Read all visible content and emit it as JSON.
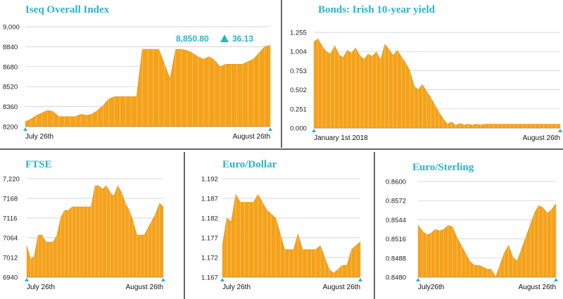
{
  "colors": {
    "fill": "#f5a21b",
    "stroke": "#e08e08",
    "title": "#2bb3c9",
    "grid": "#c9c9c9",
    "divider": "#333333"
  },
  "chart_data": [
    {
      "type": "area",
      "title": "Iseq Overall Index",
      "x_labels": [
        "July 26th",
        "August 26th"
      ],
      "ylim": [
        8200,
        9000
      ],
      "y_ticks": [
        "9,000",
        "8840",
        "8680",
        "8520",
        "8360",
        "8200"
      ],
      "annotation": {
        "value": "8,850.80",
        "change": "36.13",
        "direction": "up"
      },
      "values": [
        8240,
        8260,
        8290,
        8310,
        8330,
        8320,
        8280,
        8280,
        8280,
        8280,
        8300,
        8290,
        8300,
        8330,
        8370,
        8420,
        8440,
        8440,
        8440,
        8440,
        8440,
        8820,
        8820,
        8820,
        8820,
        8700,
        8580,
        8820,
        8820,
        8810,
        8790,
        8760,
        8740,
        8760,
        8730,
        8680,
        8700,
        8700,
        8700,
        8700,
        8720,
        8740,
        8790,
        8840,
        8850
      ]
    },
    {
      "type": "area",
      "title": "Bonds: Irish 10-year yield",
      "x_labels": [
        "January 1st 2018",
        "August 26th"
      ],
      "ylim": [
        0,
        1.255
      ],
      "y_ticks": [
        "1.255",
        "1.004",
        "0.753",
        "0.502",
        "0.251",
        "0.000"
      ],
      "values": [
        1.13,
        1.17,
        1.07,
        1.0,
        0.97,
        1.08,
        0.96,
        0.92,
        1.02,
        0.98,
        1.05,
        0.95,
        0.9,
        0.97,
        0.94,
        1.0,
        0.89,
        1.1,
        1.03,
        0.95,
        1.02,
        0.93,
        0.85,
        0.75,
        0.55,
        0.5,
        0.57,
        0.48,
        0.4,
        0.3,
        0.2,
        0.12,
        0.05,
        0.08,
        0.03,
        0.06,
        0.04,
        0.05,
        0.04,
        0.05,
        0.04,
        0.05,
        0.05,
        0.05,
        0.05,
        0.05,
        0.05,
        0.05,
        0.05,
        0.05,
        0.05,
        0.05,
        0.05,
        0.05,
        0.05,
        0.05,
        0.05,
        0.05,
        0.05,
        0.05
      ]
    },
    {
      "type": "area",
      "title": "FTSE",
      "x_labels": [
        "July 26th",
        "August 26th"
      ],
      "ylim": [
        6940,
        7220
      ],
      "y_ticks": [
        "7,220",
        "7168",
        "7116",
        "7064",
        "7012",
        "6940"
      ],
      "values": [
        7030,
        6990,
        7000,
        7060,
        7060,
        7040,
        7040,
        7040,
        7060,
        7110,
        7130,
        7130,
        7140,
        7140,
        7140,
        7140,
        7140,
        7140,
        7200,
        7200,
        7190,
        7200,
        7180,
        7170,
        7200,
        7180,
        7150,
        7130,
        7100,
        7060,
        7060,
        7060,
        7080,
        7100,
        7120,
        7150,
        7140
      ]
    },
    {
      "type": "area",
      "title": "Euro/Dollar",
      "x_labels": [
        "July 26th",
        "August 26th"
      ],
      "ylim": [
        1.167,
        1.192
      ],
      "y_ticks": [
        "1.192",
        "1.187",
        "1.182",
        "1.177",
        "1.172",
        "1.167"
      ],
      "values": [
        1.175,
        1.182,
        1.181,
        1.188,
        1.186,
        1.186,
        1.186,
        1.186,
        1.188,
        1.186,
        1.184,
        1.183,
        1.182,
        1.178,
        1.174,
        1.174,
        1.174,
        1.178,
        1.174,
        1.174,
        1.174,
        1.174,
        1.175,
        1.172,
        1.169,
        1.168,
        1.169,
        1.17,
        1.17,
        1.174,
        1.175,
        1.176
      ]
    },
    {
      "type": "area",
      "title": "Euro/Sterling",
      "x_labels": [
        "July26th",
        "August 26th"
      ],
      "ylim": [
        0.848,
        0.86
      ],
      "y_ticks": [
        "0.8600",
        "0.8572",
        "0.8544",
        "0.8516",
        "0.8488",
        "0.8480"
      ],
      "values": [
        0.8545,
        0.8538,
        0.8533,
        0.8535,
        0.854,
        0.8538,
        0.854,
        0.8545,
        0.8543,
        0.853,
        0.852,
        0.851,
        0.85,
        0.8495,
        0.8495,
        0.8493,
        0.849,
        0.849,
        0.848,
        0.8495,
        0.851,
        0.852,
        0.8505,
        0.85,
        0.8515,
        0.853,
        0.8545,
        0.856,
        0.857,
        0.8567,
        0.856,
        0.8565,
        0.8572
      ]
    }
  ]
}
